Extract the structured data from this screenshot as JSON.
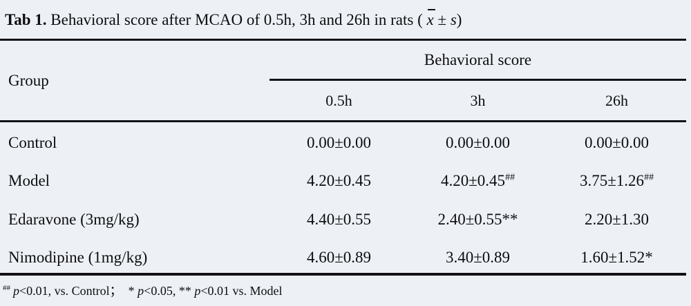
{
  "title": {
    "tag": "Tab 1.",
    "caption": " Behavioral score after MCAO of 0.5h, 3h and 26h in rats ",
    "open_paren": "( ",
    "mean_symbol": "x",
    "plus_minus": " ± ",
    "sd_symbol": "s",
    "close_paren": ")"
  },
  "table": {
    "group_header": "Group",
    "span_header": "Behavioral score",
    "time_headers": [
      "0.5h",
      "3h",
      "26h"
    ],
    "rows": [
      {
        "group": "Control",
        "values": [
          "0.00±0.00",
          "0.00±0.00",
          "0.00±0.00"
        ],
        "sups": [
          "",
          "",
          ""
        ]
      },
      {
        "group": "Model",
        "values": [
          "4.20±0.45",
          "4.20±0.45",
          "3.75±1.26"
        ],
        "sups": [
          "",
          "##",
          "##"
        ]
      },
      {
        "group": "Edaravone (3mg/kg)",
        "values": [
          "4.40±0.55",
          "2.40±0.55**",
          "2.20±1.30"
        ],
        "sups": [
          "",
          "",
          ""
        ]
      },
      {
        "group": "Nimodipine (1mg/kg)",
        "values": [
          "4.60±0.89",
          "3.40±0.89",
          "1.60±1.52*"
        ],
        "sups": [
          "",
          "",
          ""
        ]
      }
    ]
  },
  "footnote": {
    "marker": "##",
    "p1": "p",
    "seg1": "<0.01, vs. Control；  * ",
    "p2": "p",
    "seg2": "<0.05, ** ",
    "p3": "p",
    "seg3": "<0.01 vs. Model"
  },
  "colors": {
    "background": "#edf1f5",
    "text": "#0d0d10",
    "rule": "#131316"
  }
}
